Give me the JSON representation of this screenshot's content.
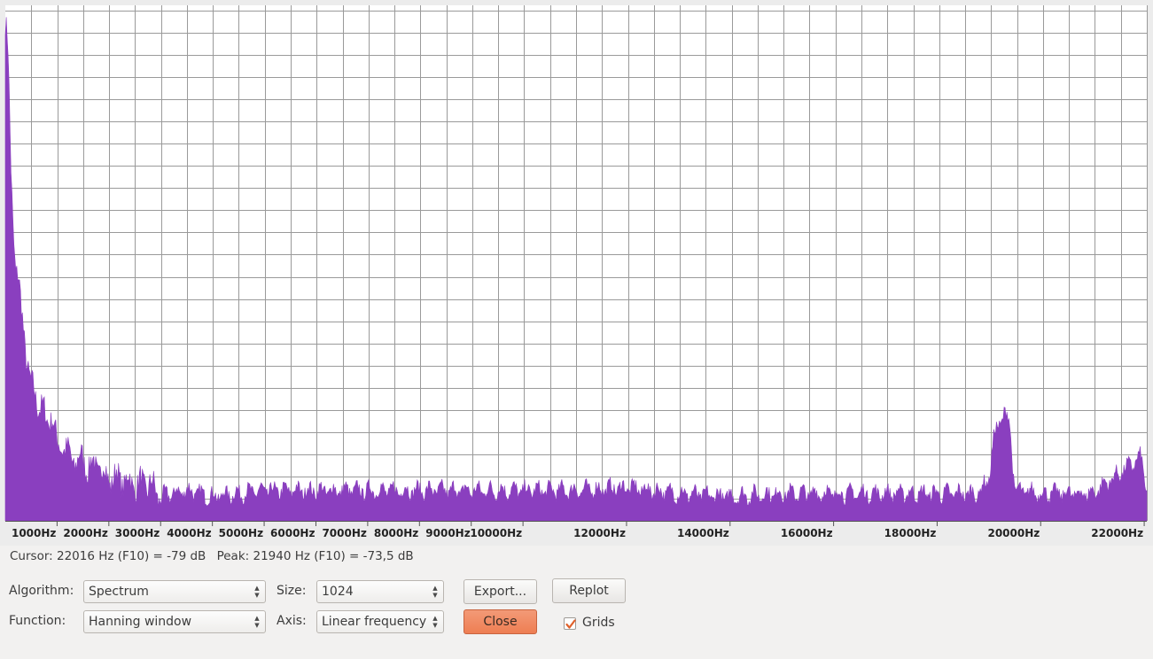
{
  "chart_data": {
    "type": "area",
    "title": "",
    "xlabel": "",
    "ylabel": "",
    "grid": true,
    "x_unit": "Hz",
    "x_range": [
      0,
      22050
    ],
    "y_range_db": [
      -84,
      0
    ],
    "x_tick_labels": [
      {
        "hz": 1000,
        "label": "1000Hz"
      },
      {
        "hz": 2000,
        "label": "2000Hz"
      },
      {
        "hz": 3000,
        "label": "3000Hz"
      },
      {
        "hz": 4000,
        "label": "4000Hz"
      },
      {
        "hz": 5000,
        "label": "5000Hz"
      },
      {
        "hz": 6000,
        "label": "6000Hz"
      },
      {
        "hz": 7000,
        "label": "7000Hz"
      },
      {
        "hz": 8000,
        "label": "8000Hz"
      },
      {
        "hz": 9000,
        "label": "9000Hz"
      },
      {
        "hz": 10000,
        "label": "10000Hz"
      },
      {
        "hz": 12000,
        "label": "12000Hz"
      },
      {
        "hz": 14000,
        "label": "14000Hz"
      },
      {
        "hz": 16000,
        "label": "16000Hz"
      },
      {
        "hz": 18000,
        "label": "18000Hz"
      },
      {
        "hz": 20000,
        "label": "20000Hz"
      },
      {
        "hz": 22000,
        "label": "22000Hz"
      }
    ],
    "series": [
      {
        "color": "#8a3fbf",
        "x": [
          0,
          50,
          100,
          150,
          200,
          250,
          300,
          400,
          500,
          600,
          700,
          800,
          900,
          1000,
          1100,
          1200,
          1300,
          1400,
          1500,
          1600,
          1800,
          2000,
          2200,
          2500,
          2800,
          3000,
          3500,
          4000,
          5000,
          6000,
          7000,
          8000,
          9000,
          10000,
          11000,
          12000,
          13000,
          14000,
          15000,
          16000,
          17000,
          18000,
          18800,
          19000,
          19100,
          19200,
          19300,
          19400,
          19500,
          20000,
          21000,
          21940,
          22050
        ],
        "y": [
          -2,
          -6,
          -24,
          -35,
          -42,
          -44,
          -49,
          -56,
          -62,
          -64,
          -65,
          -68,
          -66,
          -72,
          -71,
          -73,
          -74,
          -74,
          -74,
          -75,
          -75,
          -77,
          -77,
          -78,
          -78,
          -80,
          -79,
          -80,
          -79,
          -79,
          -79,
          -79,
          -79,
          -79,
          -79,
          -78.5,
          -79.5,
          -80,
          -79.5,
          -79.5,
          -79.5,
          -79.5,
          -79.5,
          -77,
          -70,
          -68,
          -66,
          -68,
          -79,
          -79.5,
          -79.5,
          -73.5,
          -79
        ]
      }
    ]
  },
  "status": {
    "cursor": "Cursor: 22016 Hz (F10) = -79 dB",
    "peak": "Peak: 21940 Hz (F10) = -73,5 dB"
  },
  "controls": {
    "algorithm_label": "Algorithm:",
    "algorithm_value": "Spectrum",
    "size_label": "Size:",
    "size_value": "1024",
    "function_label": "Function:",
    "function_value": "Hanning window",
    "axis_label": "Axis:",
    "axis_value": "Linear frequency",
    "export_label": "Export...",
    "replot_label": "Replot",
    "close_label": "Close",
    "grids_label": "Grids",
    "grids_checked": true
  }
}
